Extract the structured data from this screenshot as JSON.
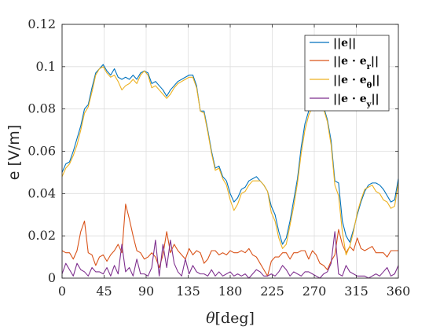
{
  "chart_data": {
    "type": "line",
    "xlabel_symbol": "θ",
    "xlabel_unit": "[deg]",
    "ylabel": "e [V/m]",
    "xlim": [
      0,
      360
    ],
    "ylim": [
      0,
      0.12
    ],
    "x_ticks": [
      "0",
      "45",
      "90",
      "135",
      "180",
      "225",
      "270",
      "315",
      "360"
    ],
    "y_ticks": [
      "0",
      "0.02",
      "0.04",
      "0.06",
      "0.08",
      "0.1",
      "0.12"
    ],
    "grid": true,
    "legend_placement": "top-right",
    "x": [
      0,
      4,
      8,
      12,
      16,
      20,
      24,
      28,
      32,
      36,
      40,
      44,
      48,
      52,
      56,
      60,
      64,
      68,
      72,
      76,
      80,
      84,
      88,
      92,
      96,
      100,
      104,
      108,
      112,
      116,
      120,
      124,
      128,
      132,
      136,
      140,
      144,
      148,
      152,
      156,
      160,
      164,
      168,
      172,
      176,
      180,
      184,
      188,
      192,
      196,
      200,
      204,
      208,
      212,
      216,
      220,
      224,
      228,
      232,
      236,
      240,
      244,
      248,
      252,
      256,
      260,
      264,
      268,
      272,
      276,
      280,
      284,
      288,
      292,
      296,
      300,
      304,
      308,
      312,
      316,
      320,
      324,
      328,
      332,
      336,
      340,
      344,
      348,
      352,
      356,
      360
    ],
    "series": [
      {
        "name": "||e||",
        "color": "#0072BD",
        "values": [
          0.05,
          0.054,
          0.055,
          0.06,
          0.066,
          0.072,
          0.08,
          0.082,
          0.09,
          0.097,
          0.099,
          0.101,
          0.098,
          0.096,
          0.099,
          0.095,
          0.094,
          0.095,
          0.094,
          0.096,
          0.094,
          0.097,
          0.098,
          0.097,
          0.092,
          0.093,
          0.091,
          0.089,
          0.086,
          0.089,
          0.091,
          0.093,
          0.094,
          0.095,
          0.096,
          0.096,
          0.091,
          0.079,
          0.079,
          0.07,
          0.06,
          0.052,
          0.053,
          0.048,
          0.046,
          0.04,
          0.036,
          0.038,
          0.042,
          0.043,
          0.046,
          0.047,
          0.048,
          0.046,
          0.044,
          0.041,
          0.034,
          0.03,
          0.022,
          0.016,
          0.019,
          0.027,
          0.037,
          0.047,
          0.062,
          0.073,
          0.079,
          0.083,
          0.084,
          0.083,
          0.081,
          0.075,
          0.065,
          0.046,
          0.045,
          0.027,
          0.02,
          0.017,
          0.023,
          0.03,
          0.036,
          0.041,
          0.044,
          0.045,
          0.045,
          0.044,
          0.042,
          0.039,
          0.036,
          0.037,
          0.047
        ]
      },
      {
        "name": "||e · e_r||",
        "color": "#D95319",
        "values": [
          0.013,
          0.012,
          0.012,
          0.009,
          0.013,
          0.022,
          0.027,
          0.012,
          0.011,
          0.006,
          0.01,
          0.011,
          0.008,
          0.011,
          0.013,
          0.016,
          0.012,
          0.035,
          0.028,
          0.02,
          0.013,
          0.012,
          0.009,
          0.01,
          0.012,
          0.01,
          0.005,
          0.011,
          0.022,
          0.012,
          0.016,
          0.013,
          0.011,
          0.009,
          0.014,
          0.011,
          0.013,
          0.012,
          0.007,
          0.009,
          0.013,
          0.013,
          0.011,
          0.012,
          0.011,
          0.013,
          0.012,
          0.012,
          0.013,
          0.012,
          0.014,
          0.011,
          0.01,
          0.007,
          0.004,
          0.001,
          0.008,
          0.01,
          0.01,
          0.012,
          0.012,
          0.009,
          0.012,
          0.012,
          0.013,
          0.013,
          0.009,
          0.013,
          0.011,
          0.007,
          0.006,
          0.004,
          0.008,
          0.011,
          0.023,
          0.016,
          0.012,
          0.015,
          0.013,
          0.019,
          0.014,
          0.013,
          0.014,
          0.015,
          0.012,
          0.012,
          0.012,
          0.01,
          0.013,
          0.013,
          0.013
        ]
      },
      {
        "name": "||e · e_θ||",
        "color": "#EDB120",
        "values": [
          0.048,
          0.052,
          0.054,
          0.058,
          0.063,
          0.07,
          0.078,
          0.081,
          0.088,
          0.096,
          0.099,
          0.1,
          0.097,
          0.095,
          0.096,
          0.093,
          0.089,
          0.091,
          0.092,
          0.094,
          0.092,
          0.096,
          0.098,
          0.096,
          0.09,
          0.091,
          0.089,
          0.087,
          0.085,
          0.087,
          0.09,
          0.092,
          0.093,
          0.094,
          0.095,
          0.095,
          0.09,
          0.079,
          0.078,
          0.069,
          0.059,
          0.051,
          0.052,
          0.047,
          0.044,
          0.037,
          0.032,
          0.035,
          0.04,
          0.041,
          0.044,
          0.046,
          0.046,
          0.046,
          0.044,
          0.041,
          0.031,
          0.027,
          0.019,
          0.014,
          0.016,
          0.025,
          0.034,
          0.045,
          0.059,
          0.07,
          0.077,
          0.081,
          0.082,
          0.082,
          0.08,
          0.074,
          0.063,
          0.044,
          0.039,
          0.022,
          0.011,
          0.015,
          0.022,
          0.031,
          0.037,
          0.042,
          0.043,
          0.044,
          0.041,
          0.04,
          0.037,
          0.036,
          0.033,
          0.034,
          0.045
        ]
      },
      {
        "name": "||e · e_y||",
        "color": "#7E2F8E",
        "values": [
          0.002,
          0.007,
          0.004,
          0.001,
          0.007,
          0.004,
          0.003,
          0.001,
          0.005,
          0.003,
          0.003,
          0.002,
          0.005,
          0.001,
          0.006,
          0.002,
          0.016,
          0.003,
          0.005,
          0.001,
          0.009,
          0.002,
          0.002,
          0.001,
          0.005,
          0.018,
          0.001,
          0.016,
          0.005,
          0.018,
          0.007,
          0.003,
          0.001,
          0.009,
          0.002,
          0.006,
          0.003,
          0.002,
          0.002,
          0.001,
          0.004,
          0.001,
          0.003,
          0.001,
          0.002,
          0.003,
          0.001,
          0.002,
          0.001,
          0.002,
          0.0,
          0.002,
          0.004,
          0.003,
          0.001,
          0.001,
          0.002,
          0.001,
          0.003,
          0.006,
          0.004,
          0.001,
          0.003,
          0.002,
          0.001,
          0.003,
          0.003,
          0.002,
          0.001,
          0.0,
          0.002,
          0.003,
          0.007,
          0.022,
          0.002,
          0.001,
          0.006,
          0.003,
          0.002,
          0.001,
          0.001,
          0.001,
          0.0,
          0.001,
          0.002,
          0.001,
          0.003,
          0.005,
          0.001,
          0.002,
          0.006
        ]
      }
    ]
  }
}
